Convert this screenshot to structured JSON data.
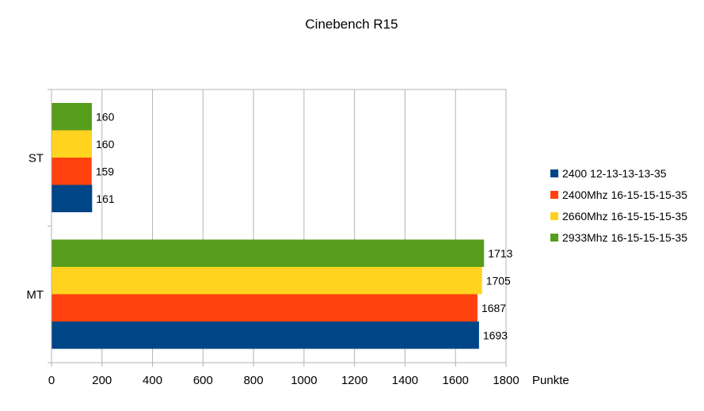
{
  "chart_data": {
    "type": "bar",
    "orientation": "horizontal",
    "title": "Cinebench R15",
    "xlabel": "Punkte",
    "ylabel": "",
    "categories": [
      "ST",
      "MT"
    ],
    "xlim": [
      0,
      1800
    ],
    "xticks": [
      0,
      200,
      400,
      600,
      800,
      1000,
      1200,
      1400,
      1600,
      1800
    ],
    "grid": true,
    "legend_position": "right",
    "series": [
      {
        "name": "2400 12-13-13-13-35",
        "color": "#004586",
        "values": [
          161,
          1693
        ]
      },
      {
        "name": "2400Mhz 16-15-15-15-35",
        "color": "#ff420e",
        "values": [
          159,
          1687
        ]
      },
      {
        "name": "2660Mhz 16-15-15-15-35",
        "color": "#ffd320",
        "values": [
          160,
          1705
        ]
      },
      {
        "name": "2933Mhz 16-15-15-15-35",
        "color": "#579d1c",
        "values": [
          160,
          1713
        ]
      }
    ]
  }
}
